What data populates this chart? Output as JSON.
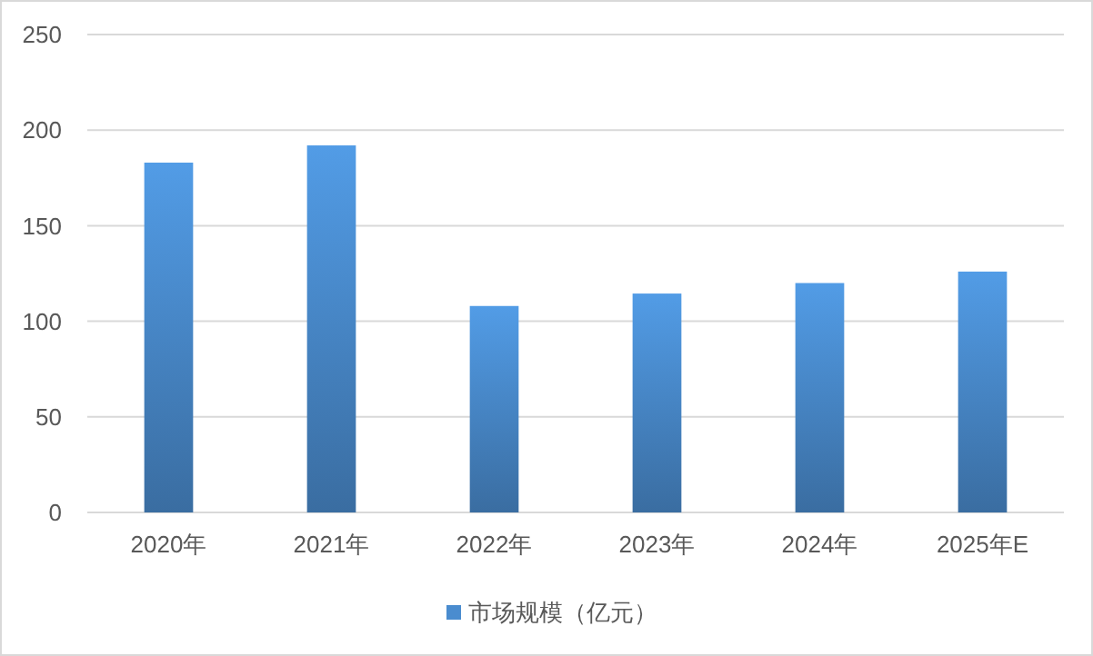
{
  "chart_data": {
    "type": "bar",
    "categories": [
      "2020年",
      "2021年",
      "2022年",
      "2023年",
      "2024年",
      "2025年E"
    ],
    "series": [
      {
        "name": "市场规模（亿元）",
        "color": "#4a8ccf",
        "values": [
          183,
          192,
          108,
          114.5,
          120,
          126
        ]
      }
    ],
    "ylim": [
      0,
      250
    ],
    "yticks": [
      0,
      50,
      100,
      150,
      200,
      250
    ],
    "grid": "y",
    "legend": "bottom"
  }
}
